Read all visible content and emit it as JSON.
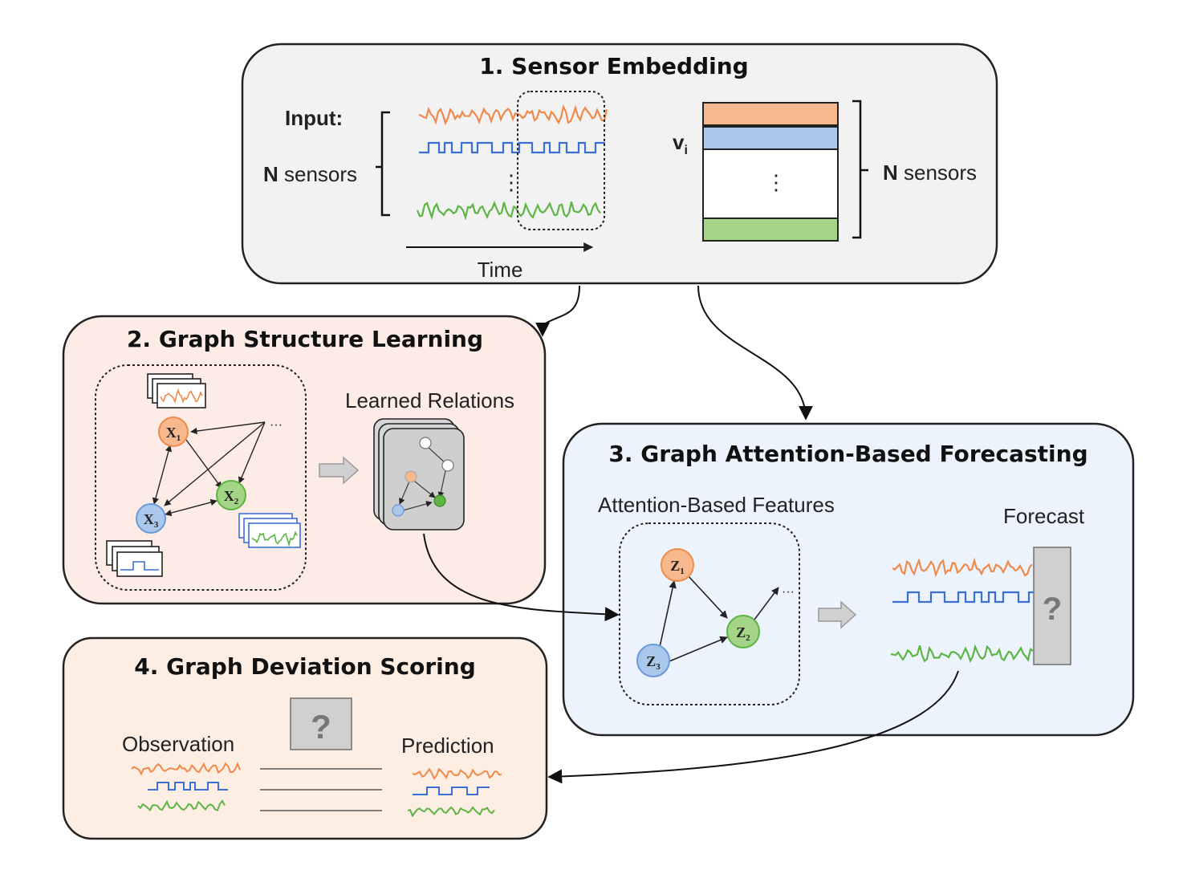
{
  "panels": {
    "sensor_embedding": {
      "title": "1. Sensor Embedding",
      "input_label": "Input:",
      "n_sensors_bold": "N",
      "n_sensors_rest": " sensors",
      "time_label": "Time",
      "vector_label": "v",
      "vector_sub": "i",
      "right_n_bold": "N",
      "right_n_rest": " sensors",
      "ellipsis": "⋮"
    },
    "graph_structure_learning": {
      "title": "2. Graph Structure Learning",
      "learned_relations": "Learned Relations",
      "node_labels": [
        "X",
        "X",
        "X"
      ],
      "node_subs": [
        "1",
        "2",
        "3"
      ],
      "ellipsis": "···"
    },
    "forecasting": {
      "title": "3. Graph Attention-Based Forecasting",
      "features_label": "Attention-Based Features",
      "forecast_label": "Forecast",
      "node_labels": [
        "Z",
        "Z",
        "Z"
      ],
      "node_subs": [
        "1",
        "2",
        "3"
      ],
      "ellipsis": "···",
      "question": "?"
    },
    "deviation_scoring": {
      "title": "4. Graph Deviation Scoring",
      "observation": "Observation",
      "prediction": "Prediction",
      "question": "?"
    }
  },
  "colors": {
    "orange": "#f08a4b",
    "blue": "#3b6fd8",
    "green": "#5db545",
    "orange_fill": "#f7b88e",
    "blue_fill": "#a9c8ec",
    "green_fill": "#a4d487",
    "panel1_bg": "#f2f2f2",
    "panel2_bg": "#fdece6",
    "panel3_bg": "#edf3fc",
    "panel4_bg": "#fdeee3"
  }
}
